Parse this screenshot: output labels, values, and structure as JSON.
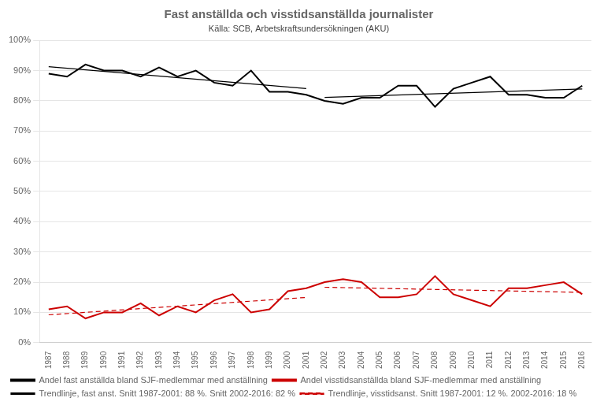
{
  "chart_data": {
    "type": "line",
    "title": "Fast anställda och visstidsanställda journalister",
    "subtitle": "Källa: SCB, Arbetskraftsundersökningen (AKU)",
    "x": [
      1987,
      1988,
      1989,
      1990,
      1991,
      1992,
      1993,
      1994,
      1995,
      1996,
      1997,
      1998,
      1999,
      2000,
      2001,
      2002,
      2003,
      2004,
      2005,
      2006,
      2007,
      2008,
      2009,
      2010,
      2011,
      2012,
      2013,
      2014,
      2015,
      2016
    ],
    "xlim": [
      1986.5,
      2016.5
    ],
    "xticks": [
      1987,
      1988,
      1989,
      1990,
      1991,
      1992,
      1993,
      1994,
      1995,
      1996,
      1997,
      1998,
      1999,
      2000,
      2001,
      2002,
      2003,
      2004,
      2005,
      2006,
      2007,
      2008,
      2009,
      2010,
      2011,
      2012,
      2013,
      2014,
      2015,
      2016
    ],
    "ylim": [
      0.0,
      1.0
    ],
    "yticks": [
      {
        "value": 0.0,
        "label": "0%"
      },
      {
        "value": 0.1,
        "label": "10%"
      },
      {
        "value": 0.2,
        "label": "20%"
      },
      {
        "value": 0.3,
        "label": "30%"
      },
      {
        "value": 0.4,
        "label": "40%"
      },
      {
        "value": 0.5,
        "label": "50%"
      },
      {
        "value": 0.6,
        "label": "60%"
      },
      {
        "value": 0.7,
        "label": "70%"
      },
      {
        "value": 0.8,
        "label": "80%"
      },
      {
        "value": 0.9,
        "label": "90%"
      },
      {
        "value": 1.0,
        "label": "100%"
      }
    ],
    "grid": "y",
    "legend": "bottom",
    "series": [
      {
        "name": "Andel fast anställda bland SJF-medlemmar med anställning",
        "color": "#000000",
        "line_style": "solid",
        "values": [
          0.89,
          0.88,
          0.92,
          0.9,
          0.9,
          0.88,
          0.91,
          0.88,
          0.9,
          0.86,
          0.85,
          0.9,
          0.83,
          0.83,
          0.82,
          0.8,
          0.79,
          0.81,
          0.81,
          0.85,
          0.85,
          0.78,
          0.84,
          0.86,
          0.88,
          0.82,
          0.82,
          0.81,
          0.81,
          0.85
        ]
      },
      {
        "name": "Andel visstidsanställda bland SJF-medlemmar med anställning",
        "color": "#cc0000",
        "line_style": "solid",
        "values": [
          0.11,
          0.12,
          0.08,
          0.1,
          0.1,
          0.13,
          0.09,
          0.12,
          0.1,
          0.14,
          0.16,
          0.1,
          0.11,
          0.17,
          0.18,
          0.2,
          0.21,
          0.2,
          0.15,
          0.15,
          0.16,
          0.22,
          0.16,
          0.14,
          0.12,
          0.18,
          0.18,
          0.19,
          0.2,
          0.16
        ]
      },
      {
        "name": "Trendlinje, fast anst. Snitt 1987-2001: 88 %. Snitt 2002-2016: 82 %",
        "color": "#000000",
        "line_style": "solid",
        "x": [
          1987,
          2001,
          null,
          2002,
          2016
        ],
        "values": [
          0.912667,
          0.840667,
          null,
          0.811333,
          0.839333
        ]
      },
      {
        "name": "Trendlinje, visstidsanst. Snitt 1987-2001: 12 %. 2002-2016: 18 %",
        "color": "#cc0000",
        "line_style": "dashed",
        "x": [
          1987,
          2001,
          null,
          2002,
          2016
        ],
        "values": [
          0.091917,
          0.149417,
          null,
          0.183167,
          0.166167
        ]
      }
    ]
  }
}
